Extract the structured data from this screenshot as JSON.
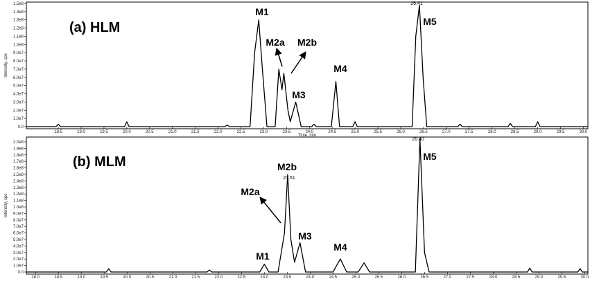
{
  "chart_data": [
    {
      "type": "line",
      "annotations": [
        "(a) HLM",
        "M1",
        "M2a",
        "M2b",
        "M3",
        "M4",
        "M5",
        "26.41"
      ],
      "x_label": "Time, min",
      "y_label": "Intensity, cps",
      "xlim": [
        17.8,
        30.1
      ],
      "xticks": [
        18.5,
        {
          "value": 19,
          "label": "19.0"
        },
        19.5,
        {
          "value": 20,
          "label": "20.0"
        },
        20.5,
        {
          "value": 21,
          "label": "21.0"
        },
        21.5,
        {
          "value": 22,
          "label": "22.0"
        },
        22.5,
        {
          "value": 23,
          "label": "23.0"
        },
        23.5,
        {
          "value": 24,
          "label": "24.0"
        },
        24.5,
        {
          "value": 25,
          "label": "25.0"
        },
        25.5,
        {
          "value": 26,
          "label": "26.0"
        },
        26.5,
        {
          "value": 27,
          "label": "27.0"
        },
        27.5,
        {
          "value": 28,
          "label": "28.0"
        },
        28.5,
        {
          "value": 29,
          "label": "29.0"
        },
        29.5,
        {
          "value": 30,
          "label": "30.0"
        }
      ],
      "ylim": [
        0,
        150000000
      ],
      "yticks": [
        {
          "value": 0,
          "label": "0.0"
        },
        {
          "value": 10000000,
          "label": "1.0e7"
        },
        {
          "value": 20000000,
          "label": "2.0e7"
        },
        {
          "value": 30000000,
          "label": "3.0e7"
        },
        {
          "value": 40000000,
          "label": "4.0e7"
        },
        {
          "value": 50000000,
          "label": "5.0e7"
        },
        {
          "value": 60000000,
          "label": "6.0e7"
        },
        {
          "value": 70000000,
          "label": "7.0e7"
        },
        {
          "value": 80000000,
          "label": "8.0e7"
        },
        {
          "value": 90000000,
          "label": "9.0e7"
        },
        {
          "value": 100000000,
          "label": "1.0e8"
        },
        {
          "value": 110000000,
          "label": "1.1e8"
        },
        {
          "value": 120000000,
          "label": "1.2e8"
        },
        {
          "value": 130000000,
          "label": "1.3e8"
        },
        {
          "value": 140000000,
          "label": "1.4e8"
        },
        {
          "value": 150000000,
          "label": "1.5e8"
        }
      ],
      "x": [
        17.8,
        18.45,
        18.5,
        18.55,
        19.95,
        20.0,
        20.05,
        22.15,
        22.2,
        22.25,
        22.7,
        22.8,
        22.89,
        22.97,
        23.07,
        23.25,
        23.33,
        23.4,
        23.44,
        23.53,
        23.58,
        23.65,
        23.7,
        23.76,
        23.82,
        24.05,
        24.1,
        24.15,
        24.48,
        24.58,
        24.66,
        24.95,
        25.0,
        25.05,
        26.25,
        26.33,
        26.41,
        26.49,
        26.57,
        27.25,
        27.3,
        27.35,
        28.35,
        28.4,
        28.45,
        28.95,
        29.0,
        29.05,
        30.1
      ],
      "series": [
        {
          "color": "#000000",
          "values": [
            0,
            0,
            3000000,
            0,
            0,
            6000000,
            0,
            0,
            2000000,
            0,
            0,
            90000000,
            130000000,
            70000000,
            0,
            0,
            70000000,
            45000000,
            65000000,
            20000000,
            6000000,
            20000000,
            30000000,
            15000000,
            0,
            0,
            3000000,
            0,
            0,
            55000000,
            0,
            0,
            6000000,
            0,
            0,
            110000000,
            148000000,
            60000000,
            0,
            0,
            3000000,
            0,
            0,
            4000000,
            0,
            0,
            6000000,
            0,
            0
          ]
        }
      ]
    },
    {
      "type": "line",
      "annotations": [
        "(b) MLM",
        "M2b",
        "23.51",
        "M2a",
        "M3",
        "M1",
        "M4",
        "M5",
        "26.40"
      ],
      "y_label": "Intensity, cps",
      "xlim": [
        17.8,
        30.07
      ],
      "xticks": [
        {
          "value": 18,
          "label": "18.0"
        },
        18.5,
        {
          "value": 19,
          "label": "19.0"
        },
        19.5,
        {
          "value": 20,
          "label": "20.0"
        },
        20.5,
        {
          "value": 21,
          "label": "21.0"
        },
        21.5,
        {
          "value": 22,
          "label": "22.0"
        },
        22.5,
        {
          "value": 23,
          "label": "23.0"
        },
        23.5,
        {
          "value": 24,
          "label": "24.0"
        },
        24.5,
        {
          "value": 25,
          "label": "25.0"
        },
        25.5,
        {
          "value": 26,
          "label": "26.0"
        },
        26.5,
        {
          "value": 27,
          "label": "27.0"
        },
        27.5,
        {
          "value": 28,
          "label": "28.0"
        },
        28.5,
        {
          "value": 29,
          "label": "29.0"
        },
        29.5,
        {
          "value": 30,
          "label": "30.0"
        }
      ],
      "ylim": [
        0,
        200000000
      ],
      "yticks": [
        {
          "value": 0,
          "label": "0.0"
        },
        {
          "value": 10000000,
          "label": "1.0e7"
        },
        {
          "value": 20000000,
          "label": "2.0e7"
        },
        {
          "value": 30000000,
          "label": "3.0e7"
        },
        {
          "value": 40000000,
          "label": "4.0e7"
        },
        {
          "value": 50000000,
          "label": "5.0e7"
        },
        {
          "value": 60000000,
          "label": "6.0e7"
        },
        {
          "value": 70000000,
          "label": "7.0e7"
        },
        {
          "value": 80000000,
          "label": "8.0e7"
        },
        {
          "value": 90000000,
          "label": "9.0e7"
        },
        {
          "value": 100000000,
          "label": "1.0e8"
        },
        {
          "value": 110000000,
          "label": "1.1e8"
        },
        {
          "value": 120000000,
          "label": "1.2e8"
        },
        {
          "value": 130000000,
          "label": "1.3e8"
        },
        {
          "value": 140000000,
          "label": "1.4e8"
        },
        {
          "value": 150000000,
          "label": "1.5e8"
        },
        {
          "value": 160000000,
          "label": "1.6e8"
        },
        {
          "value": 170000000,
          "label": "1.7e8"
        },
        {
          "value": 180000000,
          "label": "1.8e8"
        },
        {
          "value": 190000000,
          "label": "1.9e8"
        },
        {
          "value": 200000000,
          "label": "2.0e8"
        }
      ],
      "x": [
        17.8,
        19.55,
        19.6,
        19.65,
        21.75,
        21.8,
        21.85,
        22.9,
        23.0,
        23.1,
        23.3,
        23.44,
        23.51,
        23.58,
        23.66,
        23.78,
        23.9,
        24.5,
        24.66,
        24.8,
        25.05,
        25.18,
        25.3,
        26.3,
        26.4,
        26.5,
        26.6,
        28.75,
        28.8,
        28.85,
        29.85,
        29.9,
        29.95,
        30.07
      ],
      "series": [
        {
          "color": "#000000",
          "values": [
            0,
            0,
            5000000,
            0,
            0,
            3000000,
            0,
            0,
            12000000,
            0,
            0,
            60000000,
            150000000,
            50000000,
            15000000,
            45000000,
            0,
            0,
            20000000,
            0,
            0,
            14000000,
            0,
            0,
            205000000,
            30000000,
            0,
            0,
            6000000,
            0,
            0,
            5000000,
            0,
            0
          ]
        }
      ]
    }
  ]
}
